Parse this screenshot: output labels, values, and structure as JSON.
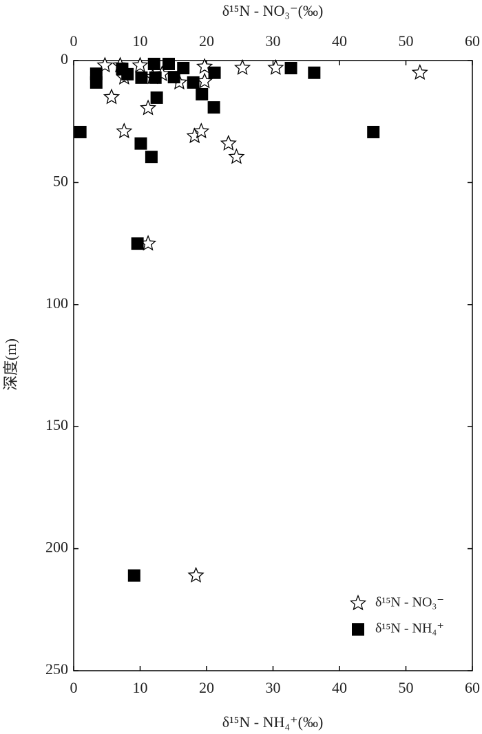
{
  "chart_data": {
    "type": "scatter",
    "xlabel": "δ¹⁵N - NH₄⁺(‰)",
    "x2label": "δ¹⁵N - NO₃⁻(‰)",
    "ylabel": "深度(m)",
    "xlim": [
      0,
      60
    ],
    "xticks": [
      0,
      10,
      20,
      30,
      40,
      50,
      60
    ],
    "x2lim": [
      0,
      60
    ],
    "x2ticks": [
      0,
      10,
      20,
      30,
      40,
      50,
      60
    ],
    "ylim": [
      250,
      0
    ],
    "yticks": [
      0,
      50,
      100,
      150,
      200,
      250
    ],
    "legend": "lower right",
    "series": [
      {
        "name": "δ¹⁵N - NO₃⁻",
        "axis": "x2",
        "marker": "star",
        "color": "#000000",
        "x": [
          4.7,
          7.0,
          7.6,
          5.7,
          11.2,
          10.0,
          11.9,
          13.3,
          15.9,
          19.7,
          19.7,
          25.4,
          30.4,
          52.1,
          7.6,
          18.2,
          19.2,
          23.3,
          24.5,
          11.2,
          18.4
        ],
        "values": [
          2,
          2,
          7,
          15,
          19.5,
          2,
          6.8,
          5.6,
          9,
          2.5,
          8.5,
          3,
          3,
          5,
          29,
          31,
          29,
          34,
          39.5,
          75,
          211
        ]
      },
      {
        "name": "δ¹⁵N - NH₄⁺",
        "axis": "x",
        "marker": "square",
        "color": "#000000",
        "x": [
          1.0,
          3.4,
          3.4,
          7.3,
          8.1,
          10.2,
          12.3,
          12.1,
          14.3,
          15.1,
          16.5,
          12.5,
          18.0,
          19.3,
          21.1,
          21.2,
          10.1,
          11.7,
          9.6,
          9.1,
          32.7,
          36.2,
          45.1
        ],
        "values": [
          29.3,
          5.4,
          9,
          3.4,
          5.6,
          7,
          7,
          1.4,
          1.4,
          6.8,
          3.1,
          15.2,
          9,
          13.8,
          19.2,
          5,
          34,
          39.5,
          75,
          211,
          3.1,
          5,
          29.3
        ]
      }
    ]
  }
}
